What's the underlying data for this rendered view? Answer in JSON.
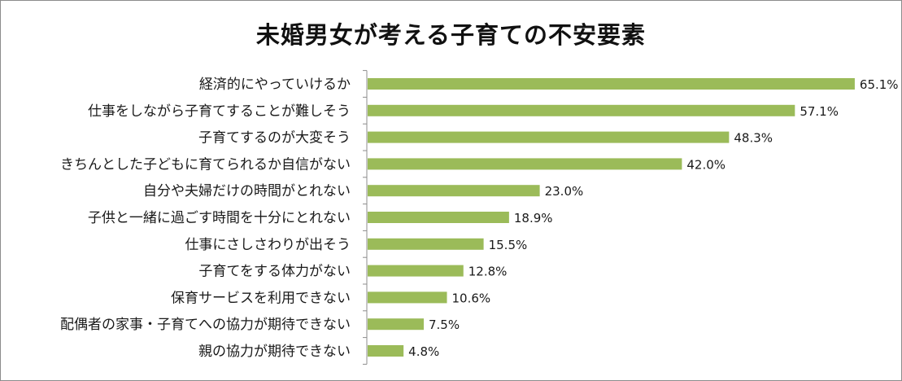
{
  "chart_data": {
    "type": "bar",
    "orientation": "horizontal",
    "title": "未婚男女が考える子育ての不安要素",
    "xlabel": "",
    "ylabel": "",
    "categories": [
      "経済的にやっていけるか",
      "仕事をしながら子育てすることが難しそう",
      "子育てするのが大変そう",
      "きちんとした子どもに育てられるか自信がない",
      "自分や夫婦だけの時間がとれない",
      "子供と一緒に過ごす時間を十分にとれない",
      "仕事にさしさわりが出そう",
      "子育てをする体力がない",
      "保育サービスを利用できない",
      "配偶者の家事・子育てへの協力が期待できない",
      "親の協力が期待できない"
    ],
    "values": [
      65.1,
      57.1,
      48.3,
      42.0,
      23.0,
      18.9,
      15.5,
      12.8,
      10.6,
      7.5,
      4.8
    ],
    "value_labels": [
      "65.1%",
      "57.1%",
      "48.3%",
      "42.0%",
      "23.0%",
      "18.9%",
      "15.5%",
      "12.8%",
      "10.6%",
      "7.5%",
      "4.8%"
    ],
    "xlim": [
      0,
      70
    ],
    "grid": false,
    "legend": "none",
    "bar_color": "#9bbb59"
  }
}
